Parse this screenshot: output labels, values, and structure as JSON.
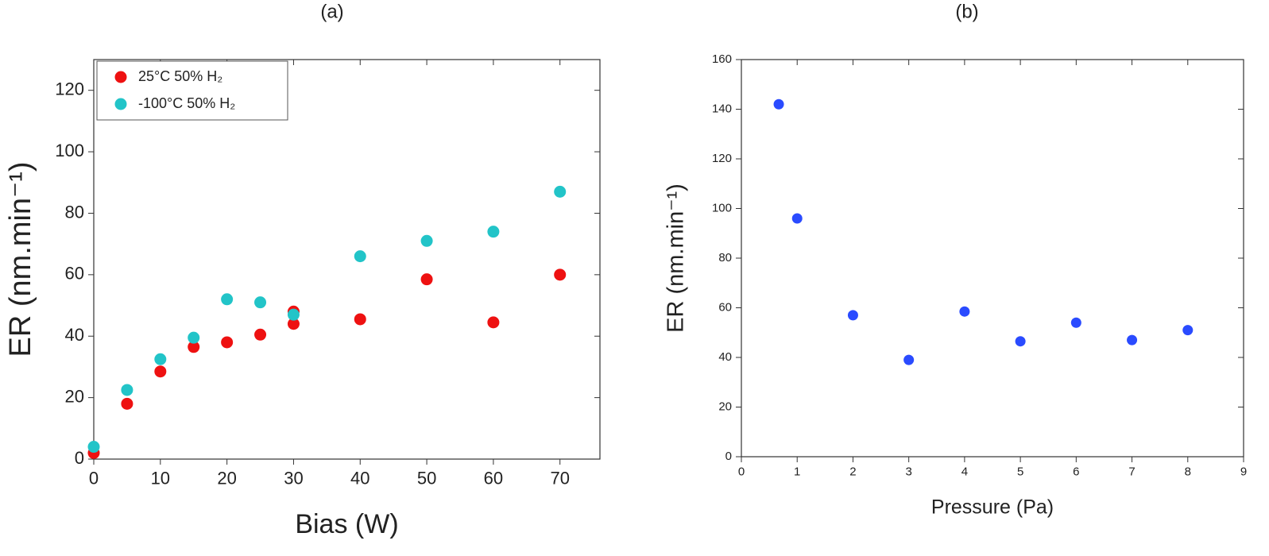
{
  "chart_data": [
    {
      "type": "scatter",
      "title": "(a)",
      "x_label": "Bias (W)",
      "y_label": "ER (nm.min⁻¹)",
      "xlim": [
        0,
        76
      ],
      "xticks": [
        0,
        10,
        20,
        30,
        40,
        50,
        60,
        70
      ],
      "ylim": [
        0,
        130
      ],
      "yticks": [
        0,
        20,
        40,
        60,
        80,
        100,
        120
      ],
      "legend": "upper left",
      "series": [
        {
          "name": "25°C 50% H₂",
          "color": "#ee1111",
          "x": [
            0,
            5,
            10,
            15,
            20,
            25,
            30,
            30,
            40,
            50,
            60,
            70
          ],
          "values": [
            2,
            18,
            28.5,
            36.5,
            38,
            40.5,
            48,
            44,
            45.5,
            58.5,
            44.5,
            60
          ]
        },
        {
          "name": "-100°C 50% H₂",
          "color": "#22c4c8",
          "x": [
            0,
            5,
            10,
            15,
            20,
            25,
            30,
            40,
            50,
            60,
            70
          ],
          "values": [
            4,
            22.5,
            32.5,
            39.5,
            52,
            51,
            47,
            66,
            71,
            74,
            87
          ]
        }
      ]
    },
    {
      "type": "scatter",
      "title": "(b)",
      "x_label": "Pressure (Pa)",
      "y_label": "ER (nm.min⁻¹)",
      "xlim": [
        0,
        9
      ],
      "xticks": [
        0,
        1,
        2,
        3,
        4,
        5,
        6,
        7,
        8,
        9
      ],
      "ylim": [
        0,
        160
      ],
      "yticks": [
        0,
        20,
        40,
        60,
        80,
        100,
        120,
        140,
        160
      ],
      "color": "#2a4bff",
      "x": [
        0.67,
        1,
        2,
        3,
        4,
        5,
        6,
        7,
        8
      ],
      "values": [
        142,
        96,
        57,
        39,
        58.5,
        46.5,
        54,
        47,
        51
      ]
    }
  ]
}
